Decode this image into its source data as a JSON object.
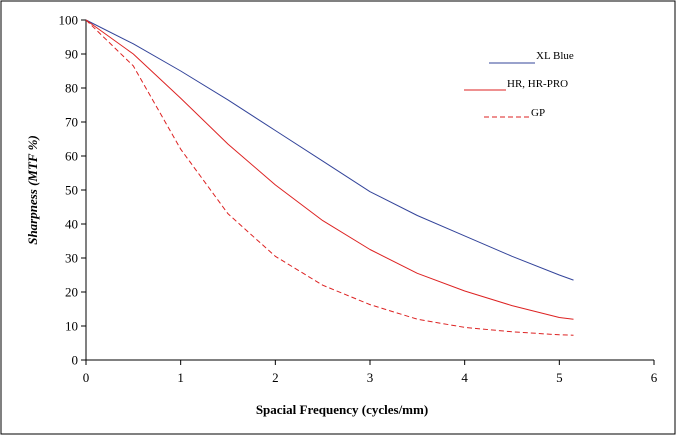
{
  "chart_data": {
    "type": "line",
    "title": "",
    "xlabel": "Spacial Frequency (cycles/mm)",
    "ylabel": "Sharpness (MTF %)",
    "xlim": [
      0,
      6
    ],
    "ylim": [
      0,
      100
    ],
    "x_ticks": [
      0,
      1,
      2,
      3,
      4,
      5,
      6
    ],
    "y_ticks": [
      0,
      10,
      20,
      30,
      40,
      50,
      60,
      70,
      80,
      90,
      100
    ],
    "grid": false,
    "legend_position": "top-right",
    "series": [
      {
        "name": "XL Blue",
        "color": "#33449a",
        "dash": "solid",
        "x": [
          0,
          0.5,
          1,
          1.5,
          2,
          2.5,
          3,
          3.5,
          4,
          4.5,
          5,
          5.15
        ],
        "y": [
          100,
          93,
          85,
          76.5,
          67.5,
          58.5,
          49.5,
          42.5,
          36.5,
          30.5,
          25,
          23.5
        ]
      },
      {
        "name": "HR, HR-PRO",
        "color": "#dd2222",
        "dash": "solid",
        "x": [
          0,
          0.5,
          1,
          1.5,
          2,
          2.5,
          3,
          3.5,
          4,
          4.5,
          5,
          5.15
        ],
        "y": [
          100,
          90,
          77,
          63.5,
          51.5,
          41,
          32.5,
          25.5,
          20.3,
          16,
          12.5,
          12
        ]
      },
      {
        "name": "GP",
        "color": "#dd2222",
        "dash": "dashed",
        "x": [
          0,
          0.5,
          1,
          1.5,
          2,
          2.5,
          3,
          3.5,
          4,
          4.5,
          5,
          5.15
        ],
        "y": [
          100,
          86.5,
          62,
          43,
          30.5,
          22,
          16.3,
          12,
          9.6,
          8.3,
          7.4,
          7.3
        ]
      }
    ]
  }
}
